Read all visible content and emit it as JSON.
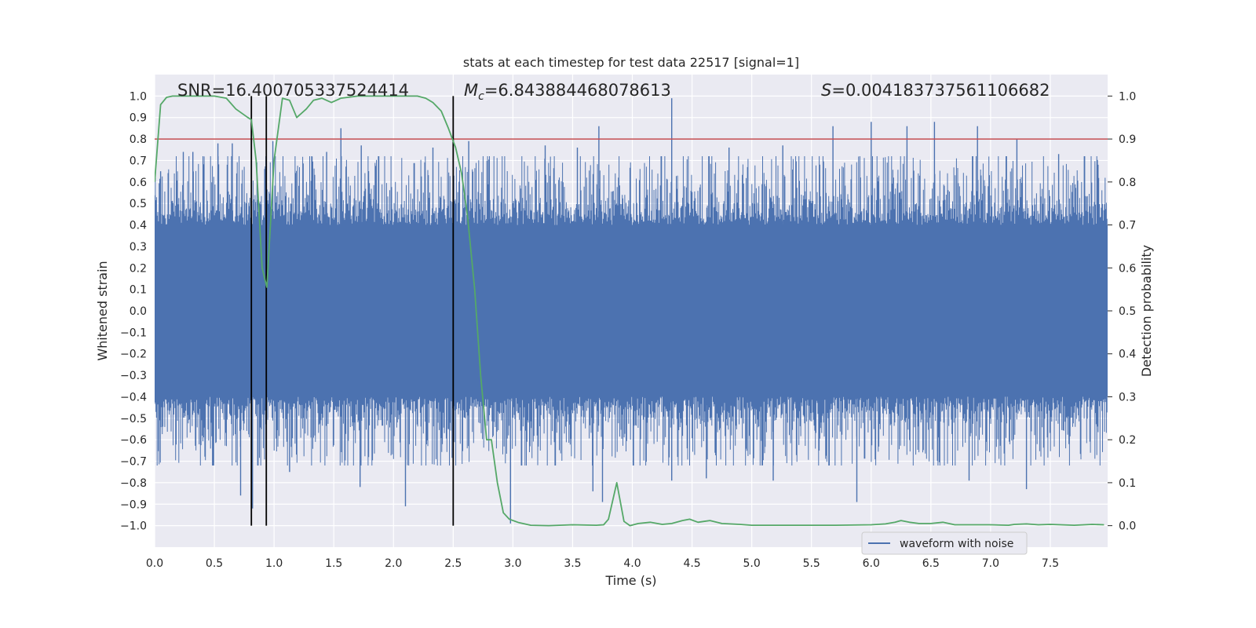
{
  "chart_data": {
    "type": "line",
    "title": "stats at each timestep for test data 22517 [signal=1]",
    "xlabel": "Time (s)",
    "ylabel_left": "Whitened strain",
    "ylabel_right": "Detection probability",
    "xlim": [
      0,
      7.98
    ],
    "ylim_left": [
      -1.1,
      1.1
    ],
    "ylim_right": [
      -0.05,
      1.05
    ],
    "x_ticks": [
      0.0,
      0.5,
      1.0,
      1.5,
      2.0,
      2.5,
      3.0,
      3.5,
      4.0,
      4.5,
      5.0,
      5.5,
      6.0,
      6.5,
      7.0,
      7.5
    ],
    "x_tick_labels": [
      "0.0",
      "0.5",
      "1.0",
      "1.5",
      "2.0",
      "2.5",
      "3.0",
      "3.5",
      "4.0",
      "4.5",
      "5.0",
      "5.5",
      "6.0",
      "6.5",
      "7.0",
      "7.5"
    ],
    "y_left_ticks": [
      1.0,
      0.9,
      0.8,
      0.7,
      0.6,
      0.5,
      0.4,
      0.3,
      0.2,
      0.1,
      0.0,
      -0.1,
      -0.2,
      -0.3,
      -0.4,
      -0.5,
      -0.6,
      -0.7,
      -0.8,
      -0.9,
      -1.0
    ],
    "y_left_tick_labels": [
      "1.0",
      "0.9",
      "0.8",
      "0.7",
      "0.6",
      "0.5",
      "0.4",
      "0.3",
      "0.2",
      "0.1",
      "0.0",
      "−0.1",
      "−0.2",
      "−0.3",
      "−0.4",
      "−0.5",
      "−0.6",
      "−0.7",
      "−0.8",
      "−0.9",
      "−1.0"
    ],
    "y_right_ticks": [
      1.0,
      0.9,
      0.8,
      0.7,
      0.6,
      0.5,
      0.4,
      0.3,
      0.2,
      0.1,
      0.0
    ],
    "y_right_tick_labels": [
      "1.0",
      "0.9",
      "0.8",
      "0.7",
      "0.6",
      "0.5",
      "0.4",
      "0.3",
      "0.2",
      "0.1",
      "0.0"
    ],
    "grid": true,
    "background": "#eaeaf2",
    "annotations": {
      "snr": "SNR=16.400705337524414",
      "mc_symbol": "M",
      "mc_sub": "c",
      "mc_value": "=6.843884468078613",
      "s_symbol": "S",
      "s_value": "=0.004183737561106682"
    },
    "threshold_line": {
      "axis": "left",
      "y": 0.8,
      "color": "#c44e52"
    },
    "vertical_lines": {
      "x": [
        0.81,
        0.935,
        2.5
      ],
      "y_range": [
        -1.0,
        1.0
      ],
      "color": "#000000"
    },
    "series": [
      {
        "name": "waveform with noise",
        "axis": "left",
        "color": "#4c72b0",
        "kind": "dense-noise",
        "core_amplitude": 0.4,
        "envelope_amplitude": 0.7,
        "spike_points": [
          {
            "x": 0.05,
            "y": 0.65
          },
          {
            "x": 0.24,
            "y": 0.74
          },
          {
            "x": 0.32,
            "y": 0.74
          },
          {
            "x": 0.53,
            "y": 0.78
          },
          {
            "x": 0.65,
            "y": 0.78
          },
          {
            "x": 0.81,
            "y": 0.86
          },
          {
            "x": 0.99,
            "y": 0.79
          },
          {
            "x": 1.44,
            "y": 0.74
          },
          {
            "x": 1.56,
            "y": 0.85
          },
          {
            "x": 1.73,
            "y": 0.77
          },
          {
            "x": 2.33,
            "y": 0.76
          },
          {
            "x": 2.63,
            "y": 0.79
          },
          {
            "x": 3.27,
            "y": 0.77
          },
          {
            "x": 3.54,
            "y": 0.76
          },
          {
            "x": 3.72,
            "y": 0.86
          },
          {
            "x": 4.33,
            "y": 0.99
          },
          {
            "x": 4.81,
            "y": 0.76
          },
          {
            "x": 5.26,
            "y": 0.77
          },
          {
            "x": 5.68,
            "y": 0.86
          },
          {
            "x": 6.0,
            "y": 0.88
          },
          {
            "x": 6.3,
            "y": 0.86
          },
          {
            "x": 6.53,
            "y": 0.88
          },
          {
            "x": 6.89,
            "y": 0.86
          },
          {
            "x": 7.22,
            "y": 0.8
          },
          {
            "x": 7.57,
            "y": 0.73
          },
          {
            "x": 7.9,
            "y": 0.68
          },
          {
            "x": 0.72,
            "y": -0.86
          },
          {
            "x": 0.82,
            "y": -0.92
          },
          {
            "x": 1.13,
            "y": -0.75
          },
          {
            "x": 1.72,
            "y": -0.82
          },
          {
            "x": 2.1,
            "y": -0.91
          },
          {
            "x": 2.98,
            "y": -0.99
          },
          {
            "x": 3.67,
            "y": -0.84
          },
          {
            "x": 3.75,
            "y": -0.89
          },
          {
            "x": 4.33,
            "y": -0.79
          },
          {
            "x": 4.62,
            "y": -0.78
          },
          {
            "x": 5.18,
            "y": -0.79
          },
          {
            "x": 5.88,
            "y": -0.89
          },
          {
            "x": 6.82,
            "y": -0.79
          },
          {
            "x": 7.3,
            "y": -0.83
          }
        ]
      },
      {
        "name": "",
        "axis": "right",
        "color": "#55a868",
        "x": [
          0.0,
          0.05,
          0.1,
          0.15,
          0.2,
          0.3,
          0.4,
          0.5,
          0.6,
          0.68,
          0.78,
          0.81,
          0.85,
          0.9,
          0.94,
          1.0,
          1.07,
          1.13,
          1.19,
          1.27,
          1.33,
          1.4,
          1.48,
          1.56,
          1.7,
          1.9,
          2.1,
          2.2,
          2.27,
          2.33,
          2.4,
          2.46,
          2.52,
          2.57,
          2.62,
          2.68,
          2.73,
          2.78,
          2.82,
          2.87,
          2.92,
          2.97,
          3.05,
          3.15,
          3.3,
          3.5,
          3.7,
          3.76,
          3.8,
          3.87,
          3.93,
          3.98,
          4.05,
          4.15,
          4.25,
          4.33,
          4.42,
          4.48,
          4.55,
          4.6,
          4.65,
          4.75,
          4.9,
          5.0,
          5.3,
          5.7,
          6.0,
          6.12,
          6.2,
          6.25,
          6.32,
          6.4,
          6.5,
          6.6,
          6.7,
          7.0,
          7.15,
          7.2,
          7.3,
          7.4,
          7.5,
          7.7,
          7.85,
          7.95
        ],
        "y": [
          0.8,
          0.98,
          0.997,
          1.0,
          1.0,
          1.0,
          1.0,
          1.0,
          0.995,
          0.97,
          0.95,
          0.945,
          0.85,
          0.6,
          0.555,
          0.85,
          0.995,
          0.99,
          0.95,
          0.97,
          0.99,
          0.995,
          0.985,
          0.995,
          1.0,
          1.0,
          1.0,
          1.0,
          0.995,
          0.985,
          0.965,
          0.925,
          0.88,
          0.82,
          0.72,
          0.55,
          0.35,
          0.2,
          0.2,
          0.1,
          0.03,
          0.015,
          0.007,
          0.001,
          0.0,
          0.002,
          0.001,
          0.002,
          0.015,
          0.1,
          0.01,
          0.0,
          0.005,
          0.008,
          0.003,
          0.005,
          0.012,
          0.015,
          0.008,
          0.01,
          0.012,
          0.005,
          0.003,
          0.001,
          0.001,
          0.001,
          0.002,
          0.004,
          0.008,
          0.012,
          0.008,
          0.005,
          0.005,
          0.008,
          0.002,
          0.002,
          0.001,
          0.003,
          0.004,
          0.002,
          0.003,
          0.001,
          0.003,
          0.002
        ]
      }
    ],
    "legend": {
      "position": "lower-right",
      "entries": [
        {
          "label": "waveform with noise",
          "color": "#4c72b0"
        }
      ]
    }
  }
}
